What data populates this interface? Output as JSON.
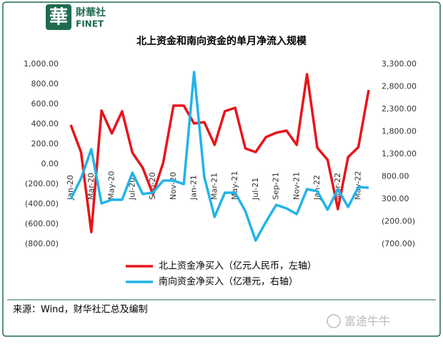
{
  "header": {
    "logo": "華",
    "brand": "財華社",
    "brand_en": "FINET"
  },
  "chart_data": {
    "type": "line",
    "title": "北上资金和南向资金的单月净流入规模",
    "categories": [
      "Jan-20",
      null,
      "Mar-20",
      null,
      "May-20",
      null,
      "Jul-20",
      null,
      "Sep-20",
      null,
      "Nov-20",
      null,
      "Jan-21",
      null,
      "Mar-21",
      null,
      "May-21",
      null,
      "Jul-21",
      null,
      "Sep-21",
      null,
      "Nov-21",
      null,
      "Jan-22",
      null,
      "Mar-22",
      null,
      "May-22",
      null
    ],
    "series": [
      {
        "name": "北上资金净买入（亿元人民币，左轴）",
        "color": "#e8141b",
        "axis": "y",
        "values": [
          393,
          121,
          -679,
          536,
          307,
          529,
          114,
          -36,
          -300,
          14,
          586,
          586,
          407,
          421,
          193,
          529,
          564,
          157,
          121,
          271,
          314,
          336,
          193,
          900,
          164,
          43,
          -450,
          71,
          171,
          743
        ]
      },
      {
        "name": "南向资金净买入（亿港元，右轴）",
        "color": "#22b4e8",
        "axis": "y2",
        "values": [
          300,
          760,
          1411,
          205,
          285,
          285,
          888,
          412,
          443,
          713,
          713,
          634,
          3125,
          792,
          -96,
          443,
          443,
          31,
          -620,
          -207,
          173,
          94,
          -33,
          522,
          475,
          63,
          522,
          126,
          570,
          554
        ]
      }
    ],
    "ylim": [
      -800,
      1000
    ],
    "yticks": [
      {
        "value": -800,
        "label": "(800.00)"
      },
      {
        "value": -600,
        "label": "(600.00)"
      },
      {
        "value": -400,
        "label": "(400.00)"
      },
      {
        "value": -200,
        "label": "(200.00)"
      },
      {
        "value": 0,
        "label": "0.00"
      },
      {
        "value": 200,
        "label": "200.00"
      },
      {
        "value": 400,
        "label": "400.00"
      },
      {
        "value": 600,
        "label": "600.00"
      },
      {
        "value": 800,
        "label": "800.00"
      },
      {
        "value": 1000,
        "label": "1,000.00"
      }
    ],
    "y2lim": [
      -700,
      3300
    ],
    "y2ticks": [
      {
        "value": -700,
        "label": "(700.00)"
      },
      {
        "value": -200,
        "label": "(200.00)"
      },
      {
        "value": 300,
        "label": "300.00"
      },
      {
        "value": 800,
        "label": "800.00"
      },
      {
        "value": 1300,
        "label": "1,300.00"
      },
      {
        "value": 1800,
        "label": "1,800.00"
      },
      {
        "value": 2300,
        "label": "2,300.00"
      },
      {
        "value": 2800,
        "label": "2,800.00"
      },
      {
        "value": 3300,
        "label": "3,300.00"
      }
    ],
    "grid": false
  },
  "footer": {
    "source": "来源：Wind，财华社汇总及编制",
    "brand": "富途牛牛"
  }
}
